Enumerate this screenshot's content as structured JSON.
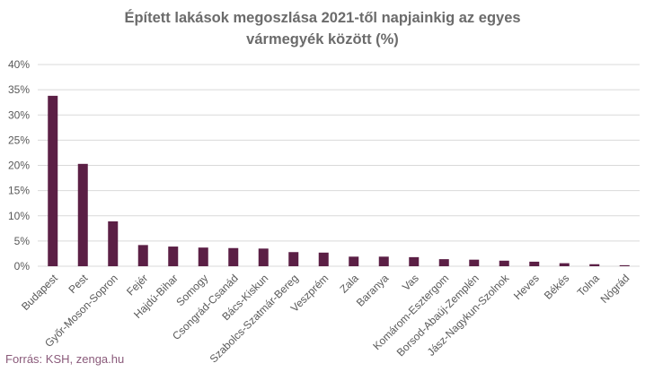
{
  "chart_data": {
    "type": "bar",
    "title_lines": [
      "Épített lakások megoszlása 2021-től napjainkig az egyes",
      "vármegyék között (%)"
    ],
    "categories": [
      "Budapest",
      "Pest",
      "Győr-Moson-Sopron",
      "Fejér",
      "Hajdú-Bihar",
      "Somogy",
      "Csongrád-Csanád",
      "Bács-Kiskun",
      "Szabolcs-Szatmár-Bereg",
      "Veszprém",
      "Zala",
      "Baranya",
      "Vas",
      "Komárom-Esztergom",
      "Borsod-Abaúj-Zemplén",
      "Jász-Nagykun-Szolnok",
      "Heves",
      "Békés",
      "Tolna",
      "Nógrád"
    ],
    "values": [
      33.8,
      20.3,
      8.9,
      4.2,
      3.9,
      3.7,
      3.6,
      3.5,
      2.8,
      2.7,
      1.9,
      1.9,
      1.8,
      1.4,
      1.3,
      1.1,
      0.9,
      0.6,
      0.4,
      0.2
    ],
    "ylim": [
      0,
      40
    ],
    "yticks": [
      0,
      5,
      10,
      15,
      20,
      25,
      30,
      35,
      40
    ],
    "ytick_labels": [
      "0%",
      "5%",
      "10%",
      "15%",
      "20%",
      "25%",
      "30%",
      "35%",
      "40%"
    ],
    "xlabel": "",
    "ylabel": "",
    "grid": true,
    "legend": "none",
    "colors": {
      "bar": "#5b1f45",
      "grid": "#d9d9d9",
      "axis_text": "#595959"
    }
  },
  "source_text": "Forrás: KSH, zenga.hu"
}
